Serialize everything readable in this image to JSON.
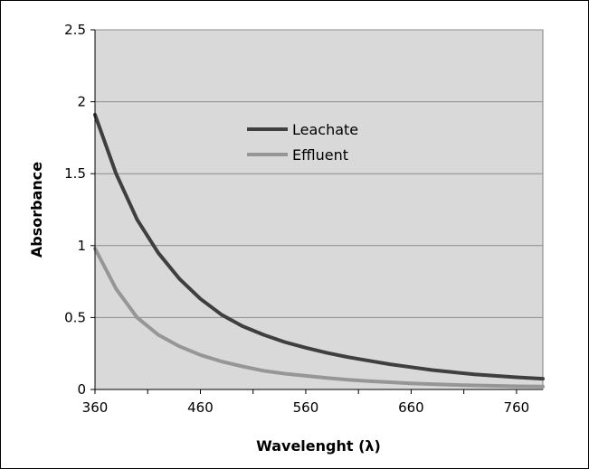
{
  "chart_data": {
    "type": "line",
    "xlabel": "Wavelenght (λ)",
    "ylabel": "Absorbance",
    "xlim": [
      360,
      785
    ],
    "ylim": [
      0,
      2.5
    ],
    "x_ticks": [
      360,
      460,
      560,
      660,
      760
    ],
    "y_ticks": [
      0,
      0.5,
      1,
      1.5,
      2,
      2.5
    ],
    "x_tick_labels": [
      "360",
      "460",
      "560",
      "660",
      "760"
    ],
    "y_tick_labels": [
      "0",
      "0.5",
      "1",
      "1.5",
      "2",
      "2.5"
    ],
    "grid": "horizontal",
    "plot_background": "#d9d9d9",
    "legend_position": "upper-center",
    "series": [
      {
        "name": "Leachate",
        "color": "#3f3f3f",
        "x": [
          360,
          380,
          400,
          420,
          440,
          460,
          480,
          500,
          520,
          540,
          560,
          580,
          600,
          620,
          640,
          660,
          680,
          700,
          720,
          740,
          760,
          785
        ],
        "y": [
          1.91,
          1.5,
          1.18,
          0.95,
          0.77,
          0.63,
          0.52,
          0.44,
          0.38,
          0.33,
          0.29,
          0.255,
          0.225,
          0.2,
          0.175,
          0.155,
          0.135,
          0.12,
          0.105,
          0.095,
          0.085,
          0.075
        ]
      },
      {
        "name": "Effluent",
        "color": "#969696",
        "x": [
          360,
          380,
          400,
          420,
          440,
          460,
          480,
          500,
          520,
          540,
          560,
          580,
          600,
          620,
          640,
          660,
          680,
          700,
          720,
          740,
          760,
          785
        ],
        "y": [
          0.98,
          0.7,
          0.5,
          0.38,
          0.3,
          0.24,
          0.195,
          0.16,
          0.13,
          0.11,
          0.095,
          0.08,
          0.068,
          0.058,
          0.05,
          0.043,
          0.037,
          0.032,
          0.028,
          0.025,
          0.022,
          0.02
        ]
      }
    ]
  }
}
